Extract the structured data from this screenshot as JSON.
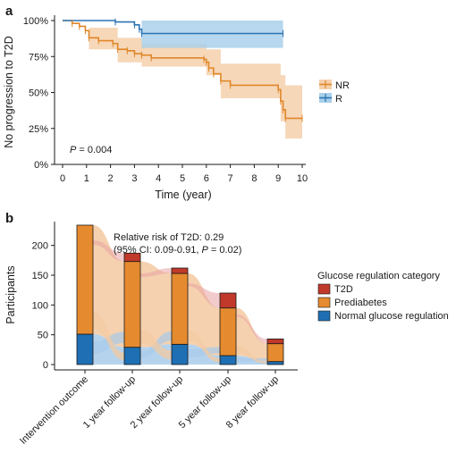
{
  "panels": {
    "a": {
      "label": "a"
    },
    "b": {
      "label": "b"
    }
  },
  "colors": {
    "nr": "#E0872A",
    "nr_band": "#F5D0AC",
    "r": "#2B74B4",
    "r_band": "#A9D0EA",
    "t2d": "#C0392B",
    "prediabetes": "#E58A2E",
    "normal": "#1E6FB3",
    "flow_orange": "#F3C9A1",
    "flow_blue": "#A8CBEA",
    "flow_red": "#E7A3A3"
  },
  "chart_data": [
    {
      "type": "line",
      "panel": "a",
      "title": "",
      "xlabel": "Time (year)",
      "ylabel": "No progression to T2D",
      "xlim": [
        0,
        10
      ],
      "ylim": [
        0,
        100
      ],
      "x_ticks": [
        "0",
        "1",
        "2",
        "3",
        "4",
        "5",
        "6",
        "7",
        "8",
        "9",
        "10"
      ],
      "y_ticks": [
        "0%",
        "25%",
        "50%",
        "75%",
        "100%"
      ],
      "annotation_p": "P",
      "annotation_value": " = 0.004",
      "legend": {
        "placement": "right",
        "entries": [
          "NR",
          "R"
        ]
      },
      "series": [
        {
          "name": "NR",
          "step": [
            [
              0,
              100
            ],
            [
              0.4,
              98
            ],
            [
              0.7,
              96
            ],
            [
              0.95,
              93
            ],
            [
              1.1,
              88
            ],
            [
              1.5,
              86
            ],
            [
              2.1,
              84
            ],
            [
              2.3,
              80
            ],
            [
              2.7,
              79
            ],
            [
              3.0,
              77
            ],
            [
              3.3,
              76
            ],
            [
              3.7,
              74
            ],
            [
              5.9,
              73
            ],
            [
              6.0,
              71
            ],
            [
              6.1,
              67
            ],
            [
              6.3,
              63
            ],
            [
              6.6,
              58
            ],
            [
              7.0,
              55
            ],
            [
              9.0,
              52
            ],
            [
              9.1,
              44
            ],
            [
              9.2,
              38
            ],
            [
              9.3,
              32
            ],
            [
              10.0,
              32
            ]
          ],
          "band_lower": [
            [
              0,
              100
            ],
            [
              1.1,
              80
            ],
            [
              2.3,
              71
            ],
            [
              3.3,
              68
            ],
            [
              6.0,
              62
            ],
            [
              6.6,
              46
            ],
            [
              9.1,
              30
            ],
            [
              9.3,
              18
            ],
            [
              10.0,
              18
            ]
          ],
          "band_upper": [
            [
              0,
              100
            ],
            [
              1.1,
              95
            ],
            [
              2.3,
              88
            ],
            [
              3.3,
              84
            ],
            [
              6.0,
              80
            ],
            [
              6.6,
              70
            ],
            [
              9.1,
              62
            ],
            [
              9.3,
              55
            ],
            [
              10.0,
              55
            ]
          ]
        },
        {
          "name": "R",
          "step": [
            [
              0,
              100
            ],
            [
              2.2,
              99
            ],
            [
              3.0,
              97
            ],
            [
              3.2,
              94
            ],
            [
              3.3,
              91
            ],
            [
              9.2,
              91
            ]
          ],
          "band_lower": [
            [
              0,
              100
            ],
            [
              3.3,
              81
            ],
            [
              9.2,
              81
            ]
          ],
          "band_upper": [
            [
              0,
              100
            ],
            [
              9.2,
              100
            ]
          ]
        }
      ]
    },
    {
      "type": "bar",
      "panel": "b",
      "title": "",
      "xlabel": "",
      "ylabel": "Participants",
      "ylim": [
        0,
        240
      ],
      "y_ticks": [
        "0",
        "50",
        "100",
        "150",
        "200"
      ],
      "categories": [
        "Intervention outcome",
        "1 year follow-up",
        "2 year follow-up",
        "5 year follow-up",
        "8 year follow-up"
      ],
      "series": [
        {
          "name": "Normal glucose regulation",
          "values": [
            51,
            29,
            34,
            15,
            5
          ]
        },
        {
          "name": "Prediabetes",
          "values": [
            183,
            144,
            119,
            80,
            30
          ]
        },
        {
          "name": "T2D",
          "values": [
            0,
            14,
            9,
            25,
            8
          ]
        }
      ],
      "annotation_line1": "Relative risk of T2D: 0.29",
      "annotation_line2_prefix": "(95% CI: 0.09-0.91, ",
      "annotation_p": "P",
      "annotation_line2_suffix": " = 0.02)",
      "legend": {
        "placement": "right",
        "title": "Glucose regulation category",
        "entries": [
          "T2D",
          "Prediabetes",
          "Normal glucose regulation"
        ]
      }
    }
  ]
}
